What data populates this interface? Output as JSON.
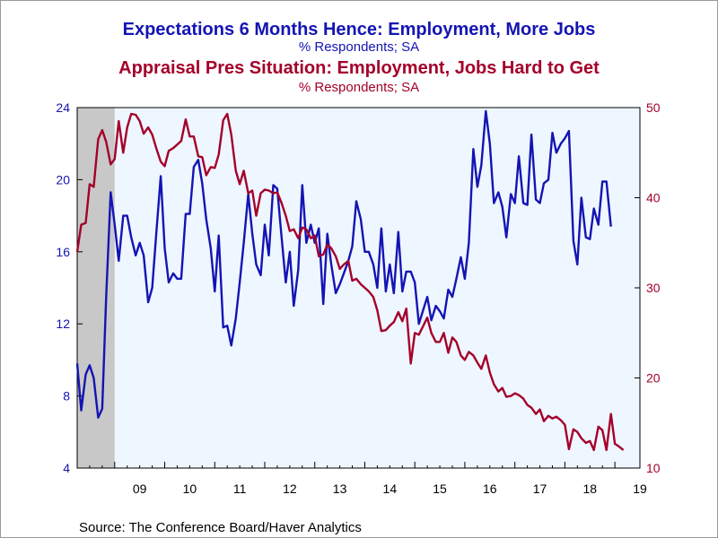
{
  "chart_data": {
    "type": "line",
    "titles": [
      {
        "title": "Expectations 6 Months Hence: Employment, More Jobs",
        "subtitle": "% Respondents; SA"
      },
      {
        "title": "Appraisal Pres Situation: Employment, Jobs Hard to Get",
        "subtitle": "% Respondents; SA"
      }
    ],
    "source": "Source:  The Conference Board/Haver Analytics",
    "x_tick_labels": [
      "09",
      "10",
      "11",
      "12",
      "13",
      "14",
      "15",
      "16",
      "17",
      "18",
      "19"
    ],
    "x_range": [
      2008.25,
      2019.5
    ],
    "left_axis": {
      "ticks": [
        4,
        8,
        12,
        16,
        20,
        24
      ],
      "range": [
        4,
        24
      ]
    },
    "right_axis": {
      "ticks": [
        10,
        20,
        30,
        40,
        50
      ],
      "range": [
        10,
        50
      ]
    },
    "recession_shading": [
      2008.25,
      2009.0
    ],
    "grid": false,
    "colors": {
      "plot_bg": "#eef6ff",
      "shade": "#c8c8c8",
      "blue": "#1414b4",
      "red": "#a4002a"
    },
    "series": [
      {
        "name": "Expectations 6 Months Hence: Employment, More Jobs",
        "axis": "left",
        "color": "#1414b4",
        "points": [
          [
            2008.25,
            9.8
          ],
          [
            2008.33,
            7.2
          ],
          [
            2008.42,
            9.2
          ],
          [
            2008.5,
            9.7
          ],
          [
            2008.58,
            9.0
          ],
          [
            2008.67,
            6.8
          ],
          [
            2008.75,
            7.3
          ],
          [
            2008.83,
            13.5
          ],
          [
            2008.92,
            19.3
          ],
          [
            2009.0,
            17.5
          ],
          [
            2009.08,
            15.5
          ],
          [
            2009.17,
            18.0
          ],
          [
            2009.25,
            18.0
          ],
          [
            2009.33,
            16.8
          ],
          [
            2009.42,
            15.8
          ],
          [
            2009.5,
            16.5
          ],
          [
            2009.58,
            15.8
          ],
          [
            2009.67,
            13.2
          ],
          [
            2009.75,
            14.0
          ],
          [
            2009.83,
            17.0
          ],
          [
            2009.92,
            20.2
          ],
          [
            2010.0,
            16.2
          ],
          [
            2010.08,
            14.3
          ],
          [
            2010.17,
            14.8
          ],
          [
            2010.25,
            14.5
          ],
          [
            2010.33,
            14.5
          ],
          [
            2010.42,
            18.1
          ],
          [
            2010.5,
            18.1
          ],
          [
            2010.58,
            20.7
          ],
          [
            2010.67,
            21.1
          ],
          [
            2010.75,
            19.8
          ],
          [
            2010.83,
            17.8
          ],
          [
            2010.92,
            16.2
          ],
          [
            2011.0,
            13.8
          ],
          [
            2011.08,
            16.9
          ],
          [
            2011.17,
            11.8
          ],
          [
            2011.25,
            11.9
          ],
          [
            2011.33,
            10.8
          ],
          [
            2011.42,
            12.3
          ],
          [
            2011.5,
            14.3
          ],
          [
            2011.58,
            16.5
          ],
          [
            2011.67,
            19.2
          ],
          [
            2011.75,
            17.0
          ],
          [
            2011.83,
            15.3
          ],
          [
            2011.92,
            14.7
          ],
          [
            2012.0,
            17.5
          ],
          [
            2012.08,
            15.8
          ],
          [
            2012.17,
            19.7
          ],
          [
            2012.25,
            19.5
          ],
          [
            2012.33,
            17.0
          ],
          [
            2012.42,
            14.3
          ],
          [
            2012.5,
            16.0
          ],
          [
            2012.58,
            13.0
          ],
          [
            2012.67,
            15.0
          ],
          [
            2012.75,
            19.7
          ],
          [
            2012.83,
            16.5
          ],
          [
            2012.92,
            17.5
          ],
          [
            2013.0,
            16.5
          ],
          [
            2013.08,
            17.3
          ],
          [
            2013.17,
            13.1
          ],
          [
            2013.25,
            17.0
          ],
          [
            2013.33,
            15.3
          ],
          [
            2013.42,
            13.7
          ],
          [
            2013.5,
            14.2
          ],
          [
            2013.58,
            14.8
          ],
          [
            2013.67,
            15.5
          ],
          [
            2013.75,
            16.3
          ],
          [
            2013.83,
            18.8
          ],
          [
            2013.92,
            17.8
          ],
          [
            2014.0,
            16.0
          ],
          [
            2014.08,
            16.0
          ],
          [
            2014.17,
            15.3
          ],
          [
            2014.25,
            14.0
          ],
          [
            2014.33,
            17.3
          ],
          [
            2014.42,
            13.8
          ],
          [
            2014.5,
            15.3
          ],
          [
            2014.58,
            13.7
          ],
          [
            2014.67,
            17.1
          ],
          [
            2014.75,
            13.8
          ],
          [
            2014.83,
            14.9
          ],
          [
            2014.92,
            14.9
          ],
          [
            2015.0,
            14.3
          ],
          [
            2015.08,
            12.0
          ],
          [
            2015.17,
            12.8
          ],
          [
            2015.25,
            13.5
          ],
          [
            2015.33,
            12.2
          ],
          [
            2015.42,
            13.0
          ],
          [
            2015.5,
            12.7
          ],
          [
            2015.58,
            12.3
          ],
          [
            2015.67,
            13.9
          ],
          [
            2015.75,
            13.5
          ],
          [
            2015.83,
            14.5
          ],
          [
            2015.92,
            15.7
          ],
          [
            2016.0,
            14.5
          ],
          [
            2016.08,
            16.5
          ],
          [
            2016.17,
            21.7
          ],
          [
            2016.25,
            19.6
          ],
          [
            2016.33,
            20.8
          ],
          [
            2016.42,
            23.8
          ],
          [
            2016.5,
            22.0
          ],
          [
            2016.58,
            18.7
          ],
          [
            2016.67,
            19.3
          ],
          [
            2016.75,
            18.5
          ],
          [
            2016.83,
            16.8
          ],
          [
            2016.92,
            19.2
          ],
          [
            2017.0,
            18.7
          ],
          [
            2017.08,
            21.3
          ],
          [
            2017.17,
            18.7
          ],
          [
            2017.25,
            18.6
          ],
          [
            2017.33,
            22.5
          ],
          [
            2017.42,
            18.9
          ],
          [
            2017.5,
            18.7
          ],
          [
            2017.58,
            19.8
          ],
          [
            2017.67,
            20.0
          ],
          [
            2017.75,
            22.6
          ],
          [
            2017.83,
            21.5
          ],
          [
            2017.92,
            22.0
          ],
          [
            2018.0,
            22.3
          ],
          [
            2018.08,
            22.7
          ],
          [
            2018.17,
            16.6
          ],
          [
            2018.25,
            15.3
          ],
          [
            2018.33,
            19.0
          ],
          [
            2018.42,
            16.8
          ],
          [
            2018.5,
            16.7
          ],
          [
            2018.58,
            18.4
          ],
          [
            2018.67,
            17.5
          ],
          [
            2018.75,
            19.9
          ],
          [
            2018.83,
            19.9
          ],
          [
            2018.92,
            17.4
          ]
        ]
      },
      {
        "name": "Appraisal Pres Situation: Employment, Jobs Hard to Get",
        "axis": "right",
        "color": "#a4002a",
        "points": [
          [
            2008.25,
            34.0
          ],
          [
            2008.33,
            37.0
          ],
          [
            2008.42,
            37.2
          ],
          [
            2008.5,
            41.5
          ],
          [
            2008.58,
            41.2
          ],
          [
            2008.67,
            46.5
          ],
          [
            2008.75,
            47.5
          ],
          [
            2008.83,
            46.2
          ],
          [
            2008.92,
            43.7
          ],
          [
            2009.0,
            44.3
          ],
          [
            2009.08,
            48.5
          ],
          [
            2009.17,
            45.0
          ],
          [
            2009.25,
            47.8
          ],
          [
            2009.33,
            49.3
          ],
          [
            2009.42,
            49.2
          ],
          [
            2009.5,
            48.5
          ],
          [
            2009.58,
            47.1
          ],
          [
            2009.67,
            47.8
          ],
          [
            2009.75,
            47.0
          ],
          [
            2009.83,
            45.5
          ],
          [
            2009.92,
            44.0
          ],
          [
            2010.0,
            43.5
          ],
          [
            2010.08,
            45.2
          ],
          [
            2010.17,
            45.5
          ],
          [
            2010.25,
            45.9
          ],
          [
            2010.33,
            46.3
          ],
          [
            2010.42,
            48.7
          ],
          [
            2010.5,
            46.8
          ],
          [
            2010.58,
            46.8
          ],
          [
            2010.67,
            44.6
          ],
          [
            2010.75,
            44.5
          ],
          [
            2010.83,
            42.5
          ],
          [
            2010.92,
            43.4
          ],
          [
            2011.0,
            43.3
          ],
          [
            2011.08,
            44.8
          ],
          [
            2011.17,
            48.6
          ],
          [
            2011.25,
            49.3
          ],
          [
            2011.33,
            47.0
          ],
          [
            2011.42,
            43.0
          ],
          [
            2011.5,
            41.5
          ],
          [
            2011.58,
            43.0
          ],
          [
            2011.67,
            40.5
          ],
          [
            2011.75,
            40.8
          ],
          [
            2011.83,
            38.0
          ],
          [
            2011.92,
            40.5
          ],
          [
            2012.0,
            40.9
          ],
          [
            2012.08,
            40.8
          ],
          [
            2012.17,
            40.5
          ],
          [
            2012.25,
            40.6
          ],
          [
            2012.33,
            39.5
          ],
          [
            2012.42,
            38.0
          ],
          [
            2012.5,
            36.3
          ],
          [
            2012.58,
            36.5
          ],
          [
            2012.67,
            35.5
          ],
          [
            2012.75,
            36.7
          ],
          [
            2012.83,
            36.5
          ],
          [
            2012.92,
            35.5
          ],
          [
            2013.0,
            35.8
          ],
          [
            2013.08,
            33.5
          ],
          [
            2013.17,
            33.7
          ],
          [
            2013.25,
            34.8
          ],
          [
            2013.33,
            34.4
          ],
          [
            2013.42,
            33.5
          ],
          [
            2013.5,
            32.1
          ],
          [
            2013.58,
            32.6
          ],
          [
            2013.67,
            33.0
          ],
          [
            2013.75,
            30.8
          ],
          [
            2013.83,
            31.0
          ],
          [
            2013.92,
            30.4
          ],
          [
            2014.0,
            30.0
          ],
          [
            2014.08,
            29.6
          ],
          [
            2014.17,
            29.0
          ],
          [
            2014.25,
            27.5
          ],
          [
            2014.33,
            25.2
          ],
          [
            2014.42,
            25.3
          ],
          [
            2014.5,
            25.8
          ],
          [
            2014.58,
            26.2
          ],
          [
            2014.67,
            27.3
          ],
          [
            2014.75,
            26.3
          ],
          [
            2014.83,
            27.7
          ],
          [
            2014.92,
            21.6
          ],
          [
            2015.0,
            25.0
          ],
          [
            2015.08,
            24.8
          ],
          [
            2015.17,
            25.8
          ],
          [
            2015.25,
            26.7
          ],
          [
            2015.33,
            25.0
          ],
          [
            2015.42,
            24.0
          ],
          [
            2015.5,
            24.0
          ],
          [
            2015.58,
            25.0
          ],
          [
            2015.67,
            22.8
          ],
          [
            2015.75,
            24.5
          ],
          [
            2015.83,
            24.0
          ],
          [
            2015.92,
            22.5
          ],
          [
            2016.0,
            22.0
          ],
          [
            2016.08,
            22.9
          ],
          [
            2016.17,
            22.5
          ],
          [
            2016.25,
            21.7
          ],
          [
            2016.33,
            21.0
          ],
          [
            2016.42,
            22.5
          ],
          [
            2016.5,
            20.6
          ],
          [
            2016.58,
            19.3
          ],
          [
            2016.67,
            18.5
          ],
          [
            2016.75,
            18.9
          ],
          [
            2016.83,
            17.9
          ],
          [
            2016.92,
            18.0
          ],
          [
            2017.0,
            18.3
          ],
          [
            2017.08,
            18.1
          ],
          [
            2017.17,
            17.7
          ],
          [
            2017.25,
            17.0
          ],
          [
            2017.33,
            16.7
          ],
          [
            2017.42,
            16.0
          ],
          [
            2017.5,
            16.5
          ],
          [
            2017.58,
            15.2
          ],
          [
            2017.67,
            15.8
          ],
          [
            2017.75,
            15.5
          ],
          [
            2017.83,
            15.7
          ],
          [
            2017.92,
            15.3
          ],
          [
            2018.0,
            14.8
          ],
          [
            2018.08,
            12.1
          ],
          [
            2018.17,
            14.3
          ],
          [
            2018.25,
            14.0
          ],
          [
            2018.33,
            13.3
          ],
          [
            2018.42,
            12.8
          ],
          [
            2018.5,
            13.0
          ],
          [
            2018.58,
            12.0
          ],
          [
            2018.67,
            14.6
          ],
          [
            2018.75,
            14.2
          ],
          [
            2018.83,
            12.0
          ],
          [
            2018.92,
            16.0
          ],
          [
            2019.0,
            12.7
          ],
          [
            2019.08,
            12.4
          ],
          [
            2019.17,
            12.0
          ]
        ]
      }
    ]
  }
}
